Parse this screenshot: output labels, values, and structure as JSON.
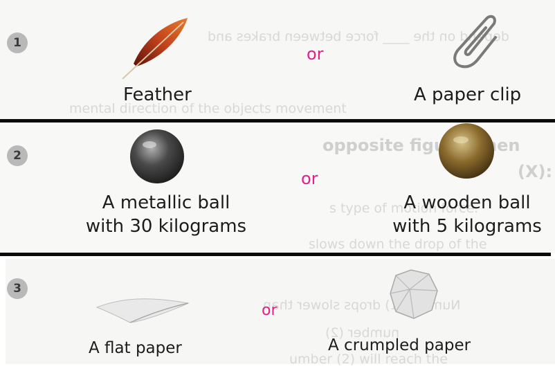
{
  "rows": [
    {
      "number": "1",
      "left": {
        "line1": "Feather",
        "icon": "feather-icon"
      },
      "or": "or",
      "right": {
        "line1": "A paper clip",
        "icon": "paper-clip-icon"
      }
    },
    {
      "number": "2",
      "left": {
        "line1": "A metallic ball",
        "line2": "with 30 kilograms",
        "icon": "metal-ball-icon"
      },
      "or": "or",
      "right": {
        "line1": "A wooden ball",
        "line2": "with 5 kilograms",
        "icon": "wooden-ball-icon"
      }
    },
    {
      "number": "3",
      "left": {
        "line1": "A flat paper",
        "icon": "flat-paper-icon"
      },
      "or": "or",
      "right": {
        "line1": "A crumpled paper",
        "icon": "crumpled-paper-icon"
      }
    }
  ],
  "colors": {
    "or": "#e0218a",
    "badge": "#b9b9b9",
    "rule": "#0a0a0a"
  }
}
